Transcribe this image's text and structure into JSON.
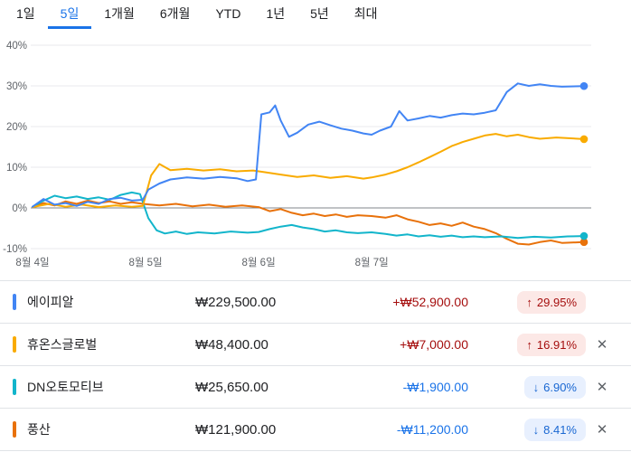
{
  "tabs": [
    {
      "label": "1일",
      "active": false
    },
    {
      "label": "5일",
      "active": true
    },
    {
      "label": "1개월",
      "active": false
    },
    {
      "label": "6개월",
      "active": false
    },
    {
      "label": "YTD",
      "active": false
    },
    {
      "label": "1년",
      "active": false
    },
    {
      "label": "5년",
      "active": false
    },
    {
      "label": "최대",
      "active": false
    }
  ],
  "chart_data": {
    "type": "line",
    "unit": "percent-change",
    "title": "",
    "xlabel": "",
    "ylabel": "",
    "ylim": [
      -10,
      40
    ],
    "baseline": 0,
    "grid": true,
    "legend_position": "table-below",
    "yticks": [
      {
        "label": "40%",
        "value": 40
      },
      {
        "label": "30%",
        "value": 30
      },
      {
        "label": "20%",
        "value": 20
      },
      {
        "label": "10%",
        "value": 10
      },
      {
        "label": "0%",
        "value": 0
      },
      {
        "label": "-10%",
        "value": -10
      }
    ],
    "xticks": [
      {
        "label": "8월 4일",
        "f": 0.0
      },
      {
        "label": "8월 5일",
        "f": 0.205
      },
      {
        "label": "8월 6일",
        "f": 0.41
      },
      {
        "label": "8월 7일",
        "f": 0.615
      }
    ],
    "series": [
      {
        "name": "에이피알",
        "color": "#4285F4",
        "final_pct": 29.95,
        "points": [
          [
            0,
            0.3
          ],
          [
            0.02,
            2.2
          ],
          [
            0.04,
            0.8
          ],
          [
            0.06,
            1.2
          ],
          [
            0.08,
            0.5
          ],
          [
            0.1,
            1.5
          ],
          [
            0.12,
            1.0
          ],
          [
            0.14,
            2.2
          ],
          [
            0.16,
            2.5
          ],
          [
            0.18,
            1.8
          ],
          [
            0.2,
            2.0
          ],
          [
            0.21,
            4.5
          ],
          [
            0.23,
            6.0
          ],
          [
            0.25,
            7.0
          ],
          [
            0.28,
            7.5
          ],
          [
            0.31,
            7.2
          ],
          [
            0.34,
            7.6
          ],
          [
            0.37,
            7.3
          ],
          [
            0.39,
            6.6
          ],
          [
            0.405,
            7.0
          ],
          [
            0.415,
            23.0
          ],
          [
            0.43,
            23.5
          ],
          [
            0.44,
            25.2
          ],
          [
            0.45,
            21.5
          ],
          [
            0.465,
            17.5
          ],
          [
            0.48,
            18.5
          ],
          [
            0.5,
            20.5
          ],
          [
            0.52,
            21.2
          ],
          [
            0.54,
            20.3
          ],
          [
            0.56,
            19.5
          ],
          [
            0.58,
            19.0
          ],
          [
            0.6,
            18.3
          ],
          [
            0.615,
            18.0
          ],
          [
            0.63,
            19.0
          ],
          [
            0.65,
            20.0
          ],
          [
            0.665,
            23.8
          ],
          [
            0.68,
            21.5
          ],
          [
            0.7,
            22.0
          ],
          [
            0.72,
            22.6
          ],
          [
            0.74,
            22.2
          ],
          [
            0.76,
            22.8
          ],
          [
            0.78,
            23.2
          ],
          [
            0.8,
            23.0
          ],
          [
            0.82,
            23.4
          ],
          [
            0.84,
            24.0
          ],
          [
            0.86,
            28.5
          ],
          [
            0.88,
            30.6
          ],
          [
            0.9,
            30.0
          ],
          [
            0.92,
            30.4
          ],
          [
            0.94,
            30.0
          ],
          [
            0.96,
            29.8
          ],
          [
            1.0,
            29.95
          ]
        ]
      },
      {
        "name": "휴온스글로벌",
        "color": "#F9AB00",
        "final_pct": 16.91,
        "points": [
          [
            0,
            0.2
          ],
          [
            0.03,
            1.0
          ],
          [
            0.06,
            0.3
          ],
          [
            0.09,
            0.8
          ],
          [
            0.12,
            0.2
          ],
          [
            0.15,
            0.6
          ],
          [
            0.18,
            0.3
          ],
          [
            0.2,
            0.5
          ],
          [
            0.215,
            8.0
          ],
          [
            0.23,
            10.8
          ],
          [
            0.25,
            9.3
          ],
          [
            0.28,
            9.6
          ],
          [
            0.31,
            9.2
          ],
          [
            0.34,
            9.5
          ],
          [
            0.37,
            9.0
          ],
          [
            0.4,
            9.2
          ],
          [
            0.42,
            8.8
          ],
          [
            0.45,
            8.2
          ],
          [
            0.48,
            7.6
          ],
          [
            0.51,
            8.0
          ],
          [
            0.54,
            7.4
          ],
          [
            0.57,
            7.8
          ],
          [
            0.6,
            7.2
          ],
          [
            0.615,
            7.5
          ],
          [
            0.64,
            8.2
          ],
          [
            0.66,
            9.0
          ],
          [
            0.68,
            10.0
          ],
          [
            0.7,
            11.2
          ],
          [
            0.72,
            12.5
          ],
          [
            0.74,
            13.8
          ],
          [
            0.76,
            15.2
          ],
          [
            0.78,
            16.2
          ],
          [
            0.8,
            17.0
          ],
          [
            0.82,
            17.8
          ],
          [
            0.84,
            18.2
          ],
          [
            0.86,
            17.6
          ],
          [
            0.88,
            18.0
          ],
          [
            0.9,
            17.4
          ],
          [
            0.92,
            17.0
          ],
          [
            0.95,
            17.3
          ],
          [
            1.0,
            16.91
          ]
        ]
      },
      {
        "name": "DN오토모티브",
        "color": "#12B5CB",
        "final_pct": -6.9,
        "points": [
          [
            0,
            0.3
          ],
          [
            0.02,
            1.8
          ],
          [
            0.04,
            3.0
          ],
          [
            0.06,
            2.4
          ],
          [
            0.08,
            2.8
          ],
          [
            0.1,
            2.2
          ],
          [
            0.12,
            2.6
          ],
          [
            0.14,
            2.0
          ],
          [
            0.16,
            3.2
          ],
          [
            0.18,
            3.8
          ],
          [
            0.195,
            3.4
          ],
          [
            0.21,
            -2.5
          ],
          [
            0.225,
            -5.5
          ],
          [
            0.24,
            -6.3
          ],
          [
            0.26,
            -5.8
          ],
          [
            0.28,
            -6.4
          ],
          [
            0.3,
            -6.0
          ],
          [
            0.33,
            -6.3
          ],
          [
            0.36,
            -5.8
          ],
          [
            0.39,
            -6.1
          ],
          [
            0.41,
            -5.9
          ],
          [
            0.43,
            -5.2
          ],
          [
            0.45,
            -4.6
          ],
          [
            0.47,
            -4.2
          ],
          [
            0.49,
            -4.8
          ],
          [
            0.51,
            -5.2
          ],
          [
            0.53,
            -5.8
          ],
          [
            0.55,
            -5.5
          ],
          [
            0.57,
            -6.0
          ],
          [
            0.59,
            -6.2
          ],
          [
            0.615,
            -6.0
          ],
          [
            0.64,
            -6.4
          ],
          [
            0.66,
            -6.8
          ],
          [
            0.68,
            -6.5
          ],
          [
            0.7,
            -7.0
          ],
          [
            0.72,
            -6.7
          ],
          [
            0.74,
            -7.1
          ],
          [
            0.76,
            -6.8
          ],
          [
            0.78,
            -7.2
          ],
          [
            0.8,
            -7.0
          ],
          [
            0.82,
            -7.2
          ],
          [
            0.85,
            -7.0
          ],
          [
            0.88,
            -7.4
          ],
          [
            0.91,
            -7.1
          ],
          [
            0.94,
            -7.3
          ],
          [
            0.97,
            -7.0
          ],
          [
            1.0,
            -6.9
          ]
        ]
      },
      {
        "name": "풍산",
        "color": "#E8710A",
        "final_pct": -8.41,
        "points": [
          [
            0,
            0.2
          ],
          [
            0.02,
            1.2
          ],
          [
            0.04,
            0.6
          ],
          [
            0.06,
            1.6
          ],
          [
            0.08,
            1.0
          ],
          [
            0.1,
            1.8
          ],
          [
            0.12,
            1.2
          ],
          [
            0.14,
            1.6
          ],
          [
            0.16,
            1.0
          ],
          [
            0.18,
            1.4
          ],
          [
            0.2,
            1.0
          ],
          [
            0.23,
            0.6
          ],
          [
            0.26,
            1.0
          ],
          [
            0.29,
            0.4
          ],
          [
            0.32,
            0.8
          ],
          [
            0.35,
            0.3
          ],
          [
            0.38,
            0.6
          ],
          [
            0.41,
            0.2
          ],
          [
            0.43,
            -0.8
          ],
          [
            0.45,
            -0.3
          ],
          [
            0.47,
            -1.2
          ],
          [
            0.49,
            -1.8
          ],
          [
            0.51,
            -1.4
          ],
          [
            0.53,
            -2.0
          ],
          [
            0.55,
            -1.6
          ],
          [
            0.57,
            -2.2
          ],
          [
            0.59,
            -1.8
          ],
          [
            0.615,
            -2.0
          ],
          [
            0.64,
            -2.4
          ],
          [
            0.66,
            -1.8
          ],
          [
            0.68,
            -2.8
          ],
          [
            0.7,
            -3.4
          ],
          [
            0.72,
            -4.2
          ],
          [
            0.74,
            -3.8
          ],
          [
            0.76,
            -4.4
          ],
          [
            0.78,
            -3.6
          ],
          [
            0.8,
            -4.6
          ],
          [
            0.82,
            -5.2
          ],
          [
            0.84,
            -6.2
          ],
          [
            0.86,
            -7.6
          ],
          [
            0.88,
            -8.8
          ],
          [
            0.9,
            -9.0
          ],
          [
            0.92,
            -8.4
          ],
          [
            0.94,
            -8.0
          ],
          [
            0.96,
            -8.6
          ],
          [
            1.0,
            -8.41
          ]
        ]
      }
    ]
  },
  "table": {
    "rows": [
      {
        "name": "에이피알",
        "color": "#4285F4",
        "price": "₩229,500.00",
        "change": "+₩52,900.00",
        "arrow": "↑",
        "pct": "29.95%",
        "direction": "up",
        "closable": false
      },
      {
        "name": "휴온스글로벌",
        "color": "#F9AB00",
        "price": "₩48,400.00",
        "change": "+₩7,000.00",
        "arrow": "↑",
        "pct": "16.91%",
        "direction": "up",
        "closable": true
      },
      {
        "name": "DN오토모티브",
        "color": "#12B5CB",
        "price": "₩25,650.00",
        "change": "-₩1,900.00",
        "arrow": "↓",
        "pct": "6.90%",
        "direction": "down",
        "closable": true
      },
      {
        "name": "풍산",
        "color": "#E8710A",
        "price": "₩121,900.00",
        "change": "-₩11,200.00",
        "arrow": "↓",
        "pct": "8.41%",
        "direction": "down",
        "closable": true
      }
    ],
    "close_glyph": "✕"
  }
}
